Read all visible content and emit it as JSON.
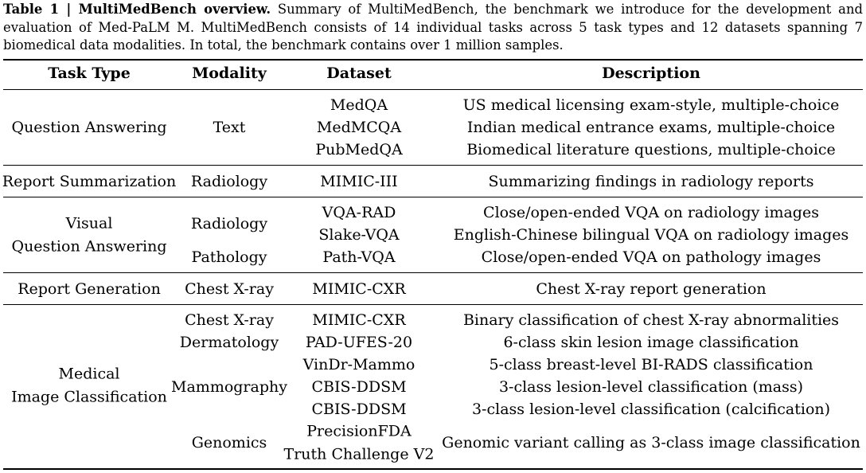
{
  "caption": {
    "label": "Table 1 | MultiMedBench overview.",
    "text": "Summary of MultiMedBench, the benchmark we introduce for the development and evaluation of Med-PaLM M. MultiMedBench consists of 14 individual tasks across 5 task types and 12 datasets spanning 7 biomedical data modalities. In total, the benchmark contains over 1 million samples."
  },
  "headers": {
    "task_type": "Task Type",
    "modality": "Modality",
    "dataset": "Dataset",
    "description": "Description"
  },
  "groups": [
    {
      "task_lines": [
        "Question Answering"
      ],
      "modalities": [
        {
          "text": "Text"
        }
      ],
      "rows": [
        {
          "dataset": "MedQA",
          "description": "US medical licensing exam-style, multiple-choice"
        },
        {
          "dataset": "MedMCQA",
          "description": "Indian medical entrance exams, multiple-choice"
        },
        {
          "dataset": "PubMedQA",
          "description": "Biomedical literature questions, multiple-choice"
        }
      ]
    },
    {
      "task_lines": [
        "Report Summarization"
      ],
      "modalities": [
        {
          "text": "Radiology"
        }
      ],
      "rows": [
        {
          "dataset": "MIMIC-III",
          "description": "Summarizing findings in radiology reports"
        }
      ]
    },
    {
      "task_lines": [
        "Visual",
        "Question Answering"
      ],
      "modalities": [
        {
          "text": "Radiology"
        },
        {
          "text": "Pathology"
        }
      ],
      "rows": [
        {
          "dataset": "VQA-RAD",
          "description": "Close/open-ended VQA on radiology images"
        },
        {
          "dataset": "Slake-VQA",
          "description": "English-Chinese bilingual VQA on radiology images"
        },
        {
          "dataset": "Path-VQA",
          "description": "Close/open-ended VQA on pathology images"
        }
      ]
    },
    {
      "task_lines": [
        "Report Generation"
      ],
      "modalities": [
        {
          "text": "Chest X-ray"
        }
      ],
      "rows": [
        {
          "dataset": "MIMIC-CXR",
          "description": "Chest X-ray report generation"
        }
      ]
    },
    {
      "task_lines": [
        "Medical",
        "Image Classification"
      ],
      "modalities": [
        {
          "text": "Chest X-ray"
        },
        {
          "text": "Dermatology"
        },
        {
          "text": "Mammography"
        },
        {
          "text": "Genomics"
        }
      ],
      "rows": [
        {
          "dataset": "MIMIC-CXR",
          "description": "Binary classification of chest X-ray abnormalities"
        },
        {
          "dataset": "PAD-UFES-20",
          "description": "6-class skin lesion image classification"
        },
        {
          "dataset": "VinDr-Mammo",
          "description": "5-class breast-level BI-RADS classification"
        },
        {
          "dataset": "CBIS-DDSM",
          "description": "3-class lesion-level classification (mass)"
        },
        {
          "dataset": "CBIS-DDSM",
          "description": "3-class lesion-level classification (calcification)"
        },
        {
          "dataset_lines": [
            "PrecisionFDA",
            "Truth Challenge V2"
          ],
          "description": "Genomic variant calling as 3-class image classification"
        }
      ]
    }
  ]
}
